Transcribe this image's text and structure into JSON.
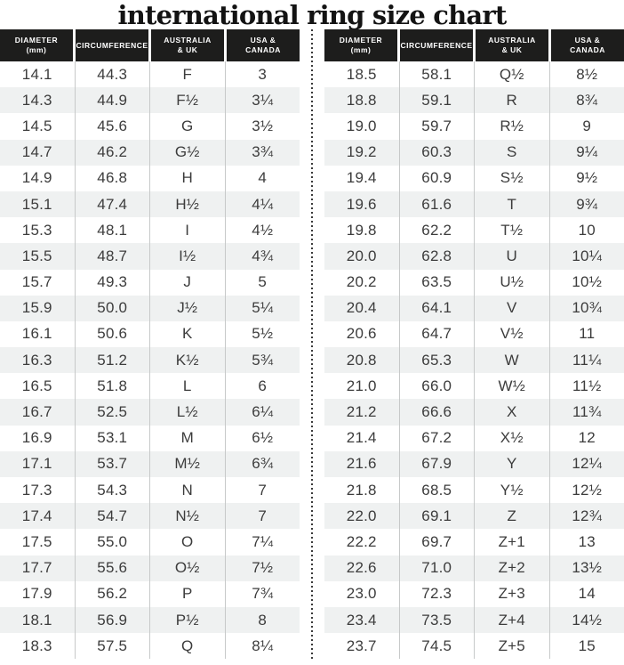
{
  "title": "international ring size chart",
  "header": {
    "column_labels": [
      "DIAMETER\n(mm)",
      "CIRCUMFERENCE",
      "AUSTRALIA\n& UK",
      "USA &\nCANADA"
    ]
  },
  "layout_split": {
    "left_rows": [
      0,
      23
    ],
    "right_rows": [
      23,
      46
    ]
  },
  "colors": {
    "header_bg": "#1d1d1c",
    "header_text": "#ffffff",
    "row_stripe": "#eff1f1",
    "cell_text": "#3c3c3c",
    "column_line": "#c7c9c9",
    "divider_dots": "#3a3a3a",
    "title_text": "#131313"
  },
  "chart_data": {
    "type": "table",
    "title": "international ring size chart",
    "columns": [
      "DIAMETER (mm)",
      "CIRCUMFERENCE",
      "AUSTRALIA & UK",
      "USA & CANADA"
    ],
    "rows": [
      [
        "14.1",
        "44.3",
        "F",
        "3"
      ],
      [
        "14.3",
        "44.9",
        "F½",
        "3¼"
      ],
      [
        "14.5",
        "45.6",
        "G",
        "3½"
      ],
      [
        "14.7",
        "46.2",
        "G½",
        "3¾"
      ],
      [
        "14.9",
        "46.8",
        "H",
        "4"
      ],
      [
        "15.1",
        "47.4",
        "H½",
        "4¼"
      ],
      [
        "15.3",
        "48.1",
        "I",
        "4½"
      ],
      [
        "15.5",
        "48.7",
        "I½",
        "4¾"
      ],
      [
        "15.7",
        "49.3",
        "J",
        "5"
      ],
      [
        "15.9",
        "50.0",
        "J½",
        "5¼"
      ],
      [
        "16.1",
        "50.6",
        "K",
        "5½"
      ],
      [
        "16.3",
        "51.2",
        "K½",
        "5¾"
      ],
      [
        "16.5",
        "51.8",
        "L",
        "6"
      ],
      [
        "16.7",
        "52.5",
        "L½",
        "6¼"
      ],
      [
        "16.9",
        "53.1",
        "M",
        "6½"
      ],
      [
        "17.1",
        "53.7",
        "M½",
        "6¾"
      ],
      [
        "17.3",
        "54.3",
        "N",
        "7"
      ],
      [
        "17.4",
        "54.7",
        "N½",
        "7"
      ],
      [
        "17.5",
        "55.0",
        "O",
        "7¼"
      ],
      [
        "17.7",
        "55.6",
        "O½",
        "7½"
      ],
      [
        "17.9",
        "56.2",
        "P",
        "7¾"
      ],
      [
        "18.1",
        "56.9",
        "P½",
        "8"
      ],
      [
        "18.3",
        "57.5",
        "Q",
        "8¼"
      ],
      [
        "18.5",
        "58.1",
        "Q½",
        "8½"
      ],
      [
        "18.8",
        "59.1",
        "R",
        "8¾"
      ],
      [
        "19.0",
        "59.7",
        "R½",
        "9"
      ],
      [
        "19.2",
        "60.3",
        "S",
        "9¼"
      ],
      [
        "19.4",
        "60.9",
        "S½",
        "9½"
      ],
      [
        "19.6",
        "61.6",
        "T",
        "9¾"
      ],
      [
        "19.8",
        "62.2",
        "T½",
        "10"
      ],
      [
        "20.0",
        "62.8",
        "U",
        "10¼"
      ],
      [
        "20.2",
        "63.5",
        "U½",
        "10½"
      ],
      [
        "20.4",
        "64.1",
        "V",
        "10¾"
      ],
      [
        "20.6",
        "64.7",
        "V½",
        "11"
      ],
      [
        "20.8",
        "65.3",
        "W",
        "11¼"
      ],
      [
        "21.0",
        "66.0",
        "W½",
        "11½"
      ],
      [
        "21.2",
        "66.6",
        "X",
        "11¾"
      ],
      [
        "21.4",
        "67.2",
        "X½",
        "12"
      ],
      [
        "21.6",
        "67.9",
        "Y",
        "12¼"
      ],
      [
        "21.8",
        "68.5",
        "Y½",
        "12½"
      ],
      [
        "22.0",
        "69.1",
        "Z",
        "12¾"
      ],
      [
        "22.2",
        "69.7",
        "Z+1",
        "13"
      ],
      [
        "22.6",
        "71.0",
        "Z+2",
        "13½"
      ],
      [
        "23.0",
        "72.3",
        "Z+3",
        "14"
      ],
      [
        "23.4",
        "73.5",
        "Z+4",
        "14½"
      ],
      [
        "23.7",
        "74.5",
        "Z+5",
        "15"
      ]
    ]
  }
}
